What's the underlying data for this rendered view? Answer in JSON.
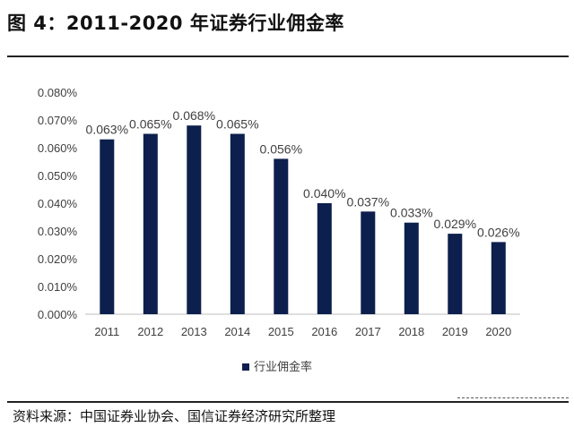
{
  "figure": {
    "title": "图  4：2011-2020 年证券行业佣金率",
    "source": "资料来源：中国证券业协会、国信证券经济研究所整理"
  },
  "colors": {
    "bar": "#0d1f4d",
    "axis": "#bfbfbf",
    "text": "#404040"
  },
  "chart_data": {
    "type": "bar",
    "title": "",
    "xlabel": "",
    "ylabel": "",
    "categories": [
      "2011",
      "2012",
      "2013",
      "2014",
      "2015",
      "2016",
      "2017",
      "2018",
      "2019",
      "2020"
    ],
    "series": [
      {
        "name": "行业佣金率",
        "values": [
          0.063,
          0.065,
          0.068,
          0.065,
          0.056,
          0.04,
          0.037,
          0.033,
          0.029,
          0.026
        ],
        "labels": [
          "0.063%",
          "0.065%",
          "0.068%",
          "0.065%",
          "0.056%",
          "0.040%",
          "0.037%",
          "0.033%",
          "0.029%",
          "0.026%"
        ]
      }
    ],
    "ylim": [
      0,
      0.08
    ],
    "yticks": [
      "0.000%",
      "0.010%",
      "0.020%",
      "0.030%",
      "0.040%",
      "0.050%",
      "0.060%",
      "0.070%",
      "0.080%"
    ],
    "grid": false,
    "legend_position": "bottom"
  }
}
